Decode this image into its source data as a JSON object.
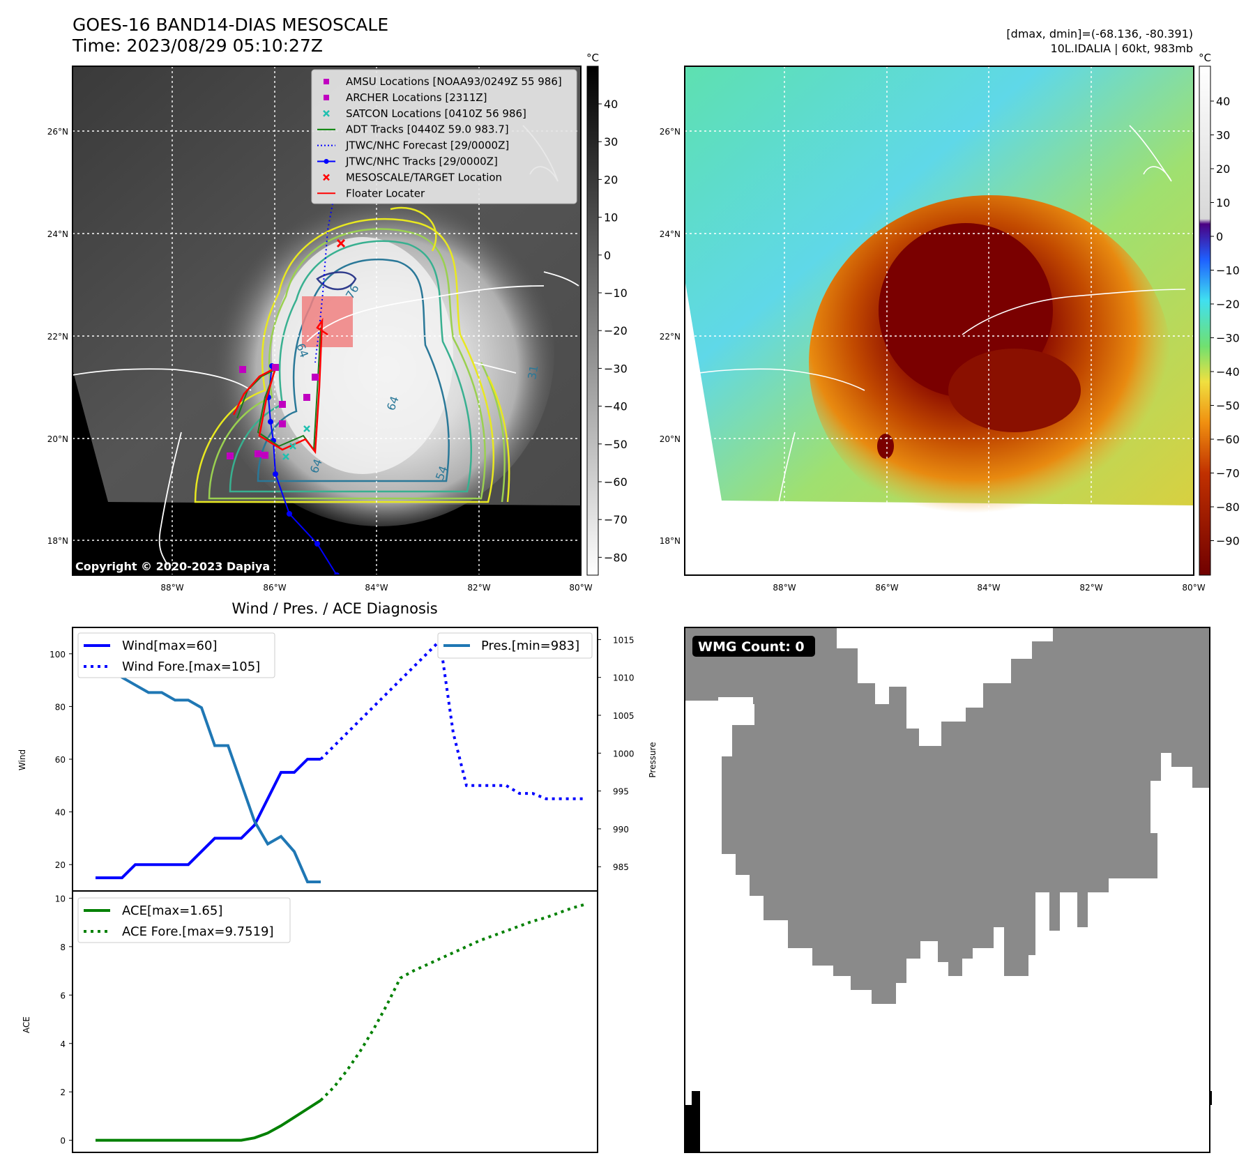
{
  "header": {
    "title_line1": "GOES-16 BAND14-DIAS MESOSCALE",
    "title_line2": "Time: 2023/08/29 05:10:27Z",
    "right_line1": "[dmax, dmin]=(-68.136, -80.391)",
    "right_line2": "10L.IDALIA | 60kt, 983mb"
  },
  "colorbar_unit": "°C",
  "copyright": "Copyright © 2020-2023 Dapiya",
  "map": {
    "lon_ticks": [
      "88°W",
      "86°W",
      "84°W",
      "82°W",
      "80°W"
    ],
    "lat_ticks": [
      "26°N",
      "24°N",
      "22°N",
      "20°N",
      "18°N"
    ],
    "left_colorbar_ticks": [
      "40",
      "30",
      "20",
      "10",
      "0",
      "−10",
      "−20",
      "−30",
      "−40",
      "−50",
      "−60",
      "−70",
      "−80"
    ],
    "right_colorbar_ticks": [
      "40",
      "30",
      "20",
      "10",
      "0",
      "−10",
      "−20",
      "−30",
      "−40",
      "−50",
      "−60",
      "−70",
      "−80",
      "−90"
    ],
    "contour_labels": [
      "76",
      "64",
      "64",
      "64",
      "54",
      "31"
    ],
    "colors": {
      "track_blue": "#0000ff",
      "target_red": "#ff0000",
      "amsu": "#c000c0",
      "satcon": "#20c0b0",
      "adt": "#008000"
    }
  },
  "legend": [
    {
      "label": "AMSU Locations [NOAA93/0249Z 55 986]",
      "symbol": "square",
      "color": "#c000c0"
    },
    {
      "label": "ARCHER Locations [2311Z]",
      "symbol": "square",
      "color": "#c000c0"
    },
    {
      "label": "SATCON Locations [0410Z 56 986]",
      "symbol": "x",
      "color": "#20c0b0"
    },
    {
      "label": "ADT Tracks [0440Z 59.0 983.7]",
      "symbol": "line",
      "color": "#008000"
    },
    {
      "label": "JTWC/NHC Forecast [29/0000Z]",
      "symbol": "dotted",
      "color": "#0000ff"
    },
    {
      "label": "JTWC/NHC Tracks [29/0000Z]",
      "symbol": "line-dot",
      "color": "#0000ff"
    },
    {
      "label": "MESOSCALE/TARGET Location",
      "symbol": "x",
      "color": "#ff0000"
    },
    {
      "label": "Floater Locater",
      "symbol": "line",
      "color": "#ff0000"
    }
  ],
  "wmg": {
    "label": "WMG Count: 0"
  },
  "chart_data": [
    {
      "type": "line",
      "title": "Wind / Pres. / ACE Diagnosis",
      "ylabel": "Wind",
      "y2label": "Pressure",
      "ylim": [
        10,
        110
      ],
      "y2lim": [
        981.8,
        1016.6
      ],
      "yticks": [
        "100",
        "80",
        "60",
        "40",
        "20"
      ],
      "y2ticks": [
        "1015",
        "1010",
        "1005",
        "1000",
        "995",
        "990",
        "985"
      ],
      "series": [
        {
          "name": "Wind[max=60]",
          "axis": "left",
          "style": "solid",
          "color": "#0000ff",
          "x": [
            0,
            1,
            2,
            3,
            4,
            5,
            6,
            7,
            8,
            9,
            10,
            11,
            12,
            13,
            14,
            15,
            16,
            17
          ],
          "values": [
            15,
            15,
            15,
            20,
            20,
            20,
            20,
            20,
            25,
            30,
            30,
            30,
            35,
            45,
            55,
            55,
            60,
            60
          ]
        },
        {
          "name": "Wind Fore.[max=105]",
          "axis": "left",
          "style": "dotted",
          "color": "#0000ff",
          "x": [
            17,
            18,
            19,
            20,
            21,
            22,
            23,
            24,
            25,
            26,
            27,
            28,
            29,
            30,
            31,
            32,
            33,
            34,
            35,
            36,
            37
          ],
          "values": [
            60,
            65,
            70,
            75,
            80,
            85,
            90,
            95,
            100,
            105,
            70,
            50,
            50,
            50,
            50,
            47,
            47,
            45,
            45,
            45,
            45
          ]
        },
        {
          "name": "Pres.[min=983]",
          "axis": "right",
          "style": "solid",
          "color": "#1f77b4",
          "x": [
            0,
            1,
            2,
            3,
            4,
            5,
            6,
            7,
            8,
            9,
            10,
            11,
            12,
            13,
            14,
            15,
            16,
            17
          ],
          "values": [
            1015,
            1015,
            1010,
            1009,
            1008,
            1008,
            1007,
            1007,
            1006,
            1001,
            1001,
            996,
            991,
            988,
            989,
            987,
            983,
            983
          ]
        }
      ]
    },
    {
      "type": "line",
      "ylabel": "ACE",
      "ylim": [
        -0.5,
        10.3
      ],
      "yticks": [
        "10",
        "8",
        "6",
        "4",
        "2",
        "0"
      ],
      "series": [
        {
          "name": "ACE[max=1.65]",
          "style": "solid",
          "color": "#008000",
          "x": [
            0,
            1,
            2,
            3,
            4,
            5,
            6,
            7,
            8,
            9,
            10,
            11,
            12,
            13,
            14,
            15,
            16,
            17
          ],
          "values": [
            0,
            0,
            0,
            0,
            0,
            0,
            0,
            0,
            0,
            0,
            0,
            0,
            0.1,
            0.3,
            0.6,
            0.95,
            1.3,
            1.65
          ]
        },
        {
          "name": "ACE Fore.[max=9.7519]",
          "style": "dotted",
          "color": "#008000",
          "x": [
            17,
            18,
            19,
            20,
            21,
            22,
            23,
            24,
            25,
            26,
            27,
            28,
            29,
            30,
            31,
            32,
            33,
            34,
            35,
            36,
            37
          ],
          "values": [
            1.65,
            2.2,
            2.9,
            3.7,
            4.6,
            5.6,
            6.7,
            7.0,
            7.25,
            7.5,
            7.75,
            8.0,
            8.25,
            8.45,
            8.65,
            8.85,
            9.05,
            9.2,
            9.4,
            9.6,
            9.75
          ]
        }
      ]
    }
  ]
}
